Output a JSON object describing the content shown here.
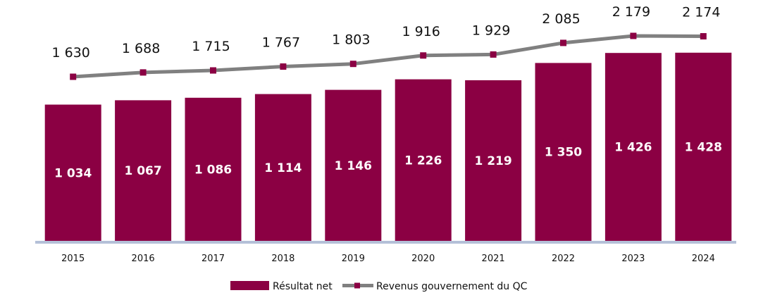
{
  "chart_data": {
    "type": "bar",
    "categories": [
      "2015",
      "2016",
      "2017",
      "2018",
      "2019",
      "2020",
      "2021",
      "2022",
      "2023",
      "2024"
    ],
    "series": [
      {
        "name": "Résultat net",
        "type": "bar",
        "values": [
          1034,
          1067,
          1086,
          1114,
          1146,
          1226,
          1219,
          1350,
          1426,
          1428
        ],
        "labels": [
          "1 034",
          "1 067",
          "1 086",
          "1 114",
          "1 146",
          "1 226",
          "1 219",
          "1 350",
          "1 426",
          "1 428"
        ],
        "color": "#8b0043"
      },
      {
        "name": "Revenus gouvernement du QC",
        "type": "line",
        "values": [
          1630,
          1688,
          1715,
          1767,
          1803,
          1916,
          1929,
          2085,
          2179,
          2174
        ],
        "labels": [
          "1 630",
          "1 688",
          "1 715",
          "1 767",
          "1 803",
          "1 916",
          "1 929",
          "2 085",
          "2 179",
          "2 174"
        ],
        "color": "#808080",
        "marker_color": "#8b0043"
      }
    ],
    "axis_color": "#b4c0d8",
    "grid": false,
    "legend": "bottom-center"
  }
}
